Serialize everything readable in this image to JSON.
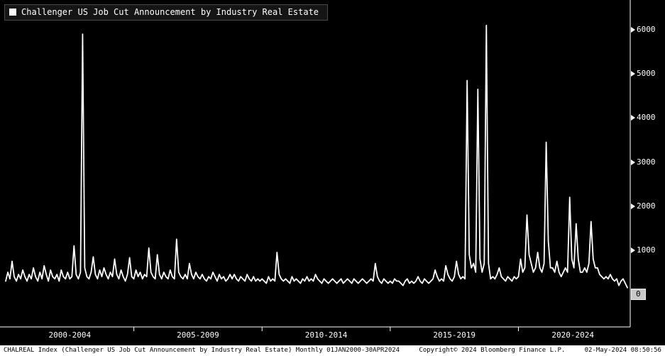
{
  "legend": {
    "series_label": "Challenger US Job Cut Announcement by Industry Real Estate"
  },
  "footer": {
    "left": "CHALREAL Index (Challenger US Job Cut Announcement by Industry Real Estate)  Monthly 01JAN2000-30APR2024",
    "copyright": "Copyright© 2024 Bloomberg Finance L.P.",
    "timestamp": "02-May-2024 08:50:56"
  },
  "colors": {
    "background": "#000000",
    "line": "#ffffff",
    "axis": "#ffffff",
    "legend_bg": "#151515",
    "footer_bg": "#ffffff",
    "footer_text": "#000000",
    "zero_tag_bg": "#c8c8c8"
  },
  "chart_data": {
    "type": "line",
    "title": "Challenger US Job Cut Announcement by Industry Real Estate",
    "ticker": "CHALREAL Index",
    "frequency": "monthly",
    "x_start": "2000-01",
    "x_end": "2024-04",
    "ylim": [
      0,
      6200
    ],
    "y_ticks": [
      0,
      1000,
      2000,
      3000,
      4000,
      5000,
      6000
    ],
    "x_tick_labels": [
      "2000-2004",
      "2005-2009",
      "2010-2014",
      "2015-2019",
      "2020-2024"
    ],
    "legend_position": "top-left",
    "grid": false,
    "values": [
      300,
      500,
      350,
      750,
      400,
      300,
      450,
      350,
      550,
      400,
      300,
      450,
      350,
      600,
      400,
      300,
      500,
      350,
      650,
      450,
      300,
      550,
      400,
      350,
      450,
      300,
      550,
      400,
      350,
      500,
      350,
      400,
      1100,
      450,
      350,
      500,
      5900,
      600,
      400,
      350,
      500,
      850,
      450,
      350,
      550,
      400,
      600,
      450,
      350,
      500,
      400,
      800,
      450,
      350,
      550,
      400,
      300,
      450,
      830,
      400,
      350,
      550,
      400,
      500,
      350,
      450,
      400,
      1050,
      500,
      400,
      350,
      900,
      450,
      350,
      500,
      400,
      350,
      550,
      400,
      350,
      1250,
      500,
      400,
      350,
      450,
      350,
      700,
      450,
      350,
      500,
      400,
      350,
      450,
      350,
      300,
      400,
      350,
      500,
      400,
      300,
      450,
      350,
      400,
      300,
      350,
      450,
      350,
      450,
      350,
      300,
      400,
      350,
      300,
      450,
      350,
      300,
      400,
      300,
      350,
      300,
      350,
      300,
      250,
      400,
      300,
      350,
      300,
      950,
      450,
      350,
      300,
      350,
      300,
      250,
      400,
      300,
      350,
      300,
      250,
      350,
      300,
      400,
      300,
      350,
      300,
      450,
      350,
      300,
      250,
      350,
      300,
      250,
      300,
      350,
      300,
      250,
      300,
      350,
      250,
      300,
      350,
      300,
      250,
      350,
      300,
      250,
      300,
      350,
      300,
      250,
      300,
      350,
      300,
      700,
      400,
      300,
      250,
      350,
      300,
      250,
      300,
      250,
      350,
      300,
      300,
      250,
      200,
      300,
      350,
      250,
      300,
      250,
      300,
      400,
      300,
      250,
      350,
      300,
      250,
      300,
      350,
      550,
      400,
      300,
      350,
      300,
      650,
      450,
      350,
      300,
      400,
      750,
      450,
      350,
      400,
      350,
      4850,
      900,
      600,
      700,
      500,
      4650,
      800,
      500,
      700,
      6100,
      700,
      350,
      400,
      350,
      450,
      600,
      400,
      350,
      300,
      400,
      350,
      300,
      400,
      350,
      400,
      800,
      500,
      600,
      1800,
      900,
      700,
      500,
      600,
      950,
      600,
      500,
      700,
      3450,
      1200,
      600,
      600,
      500,
      750,
      500,
      400,
      500,
      600,
      500,
      2200,
      800,
      600,
      1600,
      800,
      500,
      500,
      600,
      500,
      700,
      1650,
      800,
      600,
      600,
      450,
      400,
      350,
      400,
      350,
      450,
      350,
      300,
      350,
      200,
      300,
      350,
      250,
      150
    ]
  }
}
